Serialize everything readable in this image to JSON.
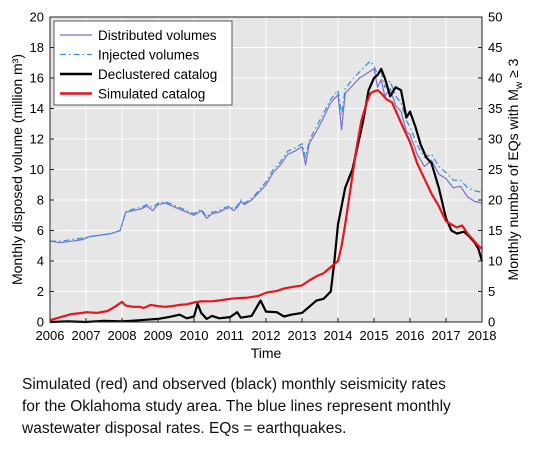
{
  "chart_data": {
    "type": "line",
    "xlabel": "Time",
    "ylabel_left": "Monthly disposed volume (million m³)",
    "ylabel_right": "Monthly number of EQs with Mw ≥ 3",
    "xlim": [
      2006,
      2018
    ],
    "ylim_left": [
      0,
      20
    ],
    "ylim_right": [
      0,
      50
    ],
    "x_ticks": [
      2006,
      2007,
      2008,
      2009,
      2010,
      2011,
      2012,
      2013,
      2014,
      2015,
      2016,
      2017,
      2018
    ],
    "y_left_ticks": [
      0,
      2,
      4,
      6,
      8,
      10,
      12,
      14,
      16,
      18,
      20
    ],
    "y_right_ticks": [
      0,
      5,
      10,
      15,
      20,
      25,
      30,
      35,
      40,
      45,
      50
    ],
    "grid": true,
    "legend_position": "top-left",
    "series": [
      {
        "name": "Distributed volumes",
        "axis": "left",
        "color": "#7b6fc9",
        "style": "solid",
        "points": [
          [
            2006.0,
            5.3
          ],
          [
            2006.3,
            5.2
          ],
          [
            2006.6,
            5.3
          ],
          [
            2006.9,
            5.4
          ],
          [
            2007.1,
            5.6
          ],
          [
            2007.4,
            5.7
          ],
          [
            2007.7,
            5.8
          ],
          [
            2007.95,
            6.0
          ],
          [
            2008.1,
            7.2
          ],
          [
            2008.3,
            7.3
          ],
          [
            2008.5,
            7.4
          ],
          [
            2008.7,
            7.6
          ],
          [
            2008.85,
            7.3
          ],
          [
            2009.0,
            7.7
          ],
          [
            2009.2,
            7.8
          ],
          [
            2009.4,
            7.6
          ],
          [
            2009.6,
            7.4
          ],
          [
            2009.8,
            7.2
          ],
          [
            2010.0,
            7.0
          ],
          [
            2010.2,
            7.3
          ],
          [
            2010.35,
            6.8
          ],
          [
            2010.5,
            7.1
          ],
          [
            2010.7,
            7.2
          ],
          [
            2010.85,
            7.4
          ],
          [
            2011.0,
            7.5
          ],
          [
            2011.1,
            7.3
          ],
          [
            2011.2,
            7.5
          ],
          [
            2011.3,
            7.9
          ],
          [
            2011.4,
            7.7
          ],
          [
            2011.6,
            8.0
          ],
          [
            2011.8,
            8.5
          ],
          [
            2012.0,
            9.0
          ],
          [
            2012.2,
            9.8
          ],
          [
            2012.4,
            10.3
          ],
          [
            2012.6,
            11.0
          ],
          [
            2012.8,
            11.2
          ],
          [
            2013.0,
            11.5
          ],
          [
            2013.1,
            10.3
          ],
          [
            2013.2,
            11.7
          ],
          [
            2013.4,
            12.5
          ],
          [
            2013.6,
            13.4
          ],
          [
            2013.8,
            14.4
          ],
          [
            2014.0,
            14.9
          ],
          [
            2014.1,
            12.6
          ],
          [
            2014.2,
            15.0
          ],
          [
            2014.4,
            15.5
          ],
          [
            2014.6,
            16.0
          ],
          [
            2014.8,
            16.3
          ],
          [
            2015.0,
            16.6
          ],
          [
            2015.1,
            15.4
          ],
          [
            2015.2,
            15.9
          ],
          [
            2015.3,
            14.8
          ],
          [
            2015.45,
            15.3
          ],
          [
            2015.6,
            14.2
          ],
          [
            2015.75,
            13.8
          ],
          [
            2015.9,
            12.5
          ],
          [
            2016.0,
            12.3
          ],
          [
            2016.2,
            11.0
          ],
          [
            2016.4,
            10.2
          ],
          [
            2016.6,
            10.6
          ],
          [
            2016.8,
            9.7
          ],
          [
            2017.0,
            9.4
          ],
          [
            2017.2,
            8.8
          ],
          [
            2017.4,
            8.9
          ],
          [
            2017.6,
            8.2
          ],
          [
            2017.8,
            7.9
          ],
          [
            2018.0,
            7.8
          ]
        ]
      },
      {
        "name": "Injected volumes",
        "axis": "left",
        "color": "#2e8fd8",
        "style": "dashdot",
        "points": [
          [
            2006.0,
            5.3
          ],
          [
            2006.3,
            5.3
          ],
          [
            2006.6,
            5.4
          ],
          [
            2006.9,
            5.5
          ],
          [
            2007.1,
            5.6
          ],
          [
            2007.4,
            5.7
          ],
          [
            2007.7,
            5.8
          ],
          [
            2007.95,
            6.0
          ],
          [
            2008.1,
            7.2
          ],
          [
            2008.3,
            7.4
          ],
          [
            2008.5,
            7.5
          ],
          [
            2008.7,
            7.7
          ],
          [
            2008.85,
            7.5
          ],
          [
            2009.0,
            7.8
          ],
          [
            2009.2,
            7.9
          ],
          [
            2009.4,
            7.7
          ],
          [
            2009.6,
            7.5
          ],
          [
            2009.8,
            7.3
          ],
          [
            2010.0,
            7.1
          ],
          [
            2010.2,
            7.4
          ],
          [
            2010.35,
            6.9
          ],
          [
            2010.5,
            7.2
          ],
          [
            2010.7,
            7.3
          ],
          [
            2010.85,
            7.5
          ],
          [
            2011.0,
            7.6
          ],
          [
            2011.1,
            7.4
          ],
          [
            2011.2,
            7.6
          ],
          [
            2011.3,
            8.0
          ],
          [
            2011.4,
            7.8
          ],
          [
            2011.6,
            8.1
          ],
          [
            2011.8,
            8.6
          ],
          [
            2012.0,
            9.2
          ],
          [
            2012.2,
            10.0
          ],
          [
            2012.4,
            10.5
          ],
          [
            2012.6,
            11.2
          ],
          [
            2012.8,
            11.4
          ],
          [
            2013.0,
            11.7
          ],
          [
            2013.1,
            10.8
          ],
          [
            2013.2,
            11.9
          ],
          [
            2013.4,
            12.8
          ],
          [
            2013.6,
            13.7
          ],
          [
            2013.8,
            14.6
          ],
          [
            2014.0,
            15.2
          ],
          [
            2014.1,
            13.6
          ],
          [
            2014.2,
            15.3
          ],
          [
            2014.4,
            15.9
          ],
          [
            2014.6,
            16.4
          ],
          [
            2014.8,
            16.9
          ],
          [
            2014.9,
            17.1
          ],
          [
            2015.0,
            16.8
          ],
          [
            2015.1,
            16.2
          ],
          [
            2015.2,
            16.4
          ],
          [
            2015.3,
            15.4
          ],
          [
            2015.45,
            15.8
          ],
          [
            2015.6,
            14.8
          ],
          [
            2015.75,
            14.4
          ],
          [
            2015.9,
            13.2
          ],
          [
            2016.0,
            12.8
          ],
          [
            2016.2,
            11.6
          ],
          [
            2016.4,
            10.8
          ],
          [
            2016.6,
            11.0
          ],
          [
            2016.8,
            10.2
          ],
          [
            2017.0,
            9.8
          ],
          [
            2017.2,
            9.3
          ],
          [
            2017.4,
            9.3
          ],
          [
            2017.6,
            8.8
          ],
          [
            2017.8,
            8.6
          ],
          [
            2018.0,
            8.5
          ]
        ]
      },
      {
        "name": "Declustered catalog",
        "axis": "right",
        "color": "#000000",
        "style": "solid",
        "points": [
          [
            2006.0,
            0.0
          ],
          [
            2006.5,
            0.1
          ],
          [
            2007.0,
            0.0
          ],
          [
            2007.5,
            0.2
          ],
          [
            2008.0,
            0.1
          ],
          [
            2008.5,
            0.3
          ],
          [
            2009.0,
            0.5
          ],
          [
            2009.3,
            0.8
          ],
          [
            2009.6,
            1.2
          ],
          [
            2009.8,
            0.6
          ],
          [
            2010.0,
            0.9
          ],
          [
            2010.1,
            3.0
          ],
          [
            2010.2,
            1.5
          ],
          [
            2010.35,
            0.5
          ],
          [
            2010.5,
            1.0
          ],
          [
            2010.7,
            0.6
          ],
          [
            2011.0,
            0.8
          ],
          [
            2011.2,
            1.6
          ],
          [
            2011.3,
            0.7
          ],
          [
            2011.6,
            1.0
          ],
          [
            2011.85,
            3.5
          ],
          [
            2012.0,
            1.7
          ],
          [
            2012.3,
            1.6
          ],
          [
            2012.5,
            0.9
          ],
          [
            2012.7,
            1.2
          ],
          [
            2013.0,
            1.5
          ],
          [
            2013.2,
            2.5
          ],
          [
            2013.4,
            3.5
          ],
          [
            2013.6,
            3.8
          ],
          [
            2013.8,
            5.0
          ],
          [
            2013.9,
            10.0
          ],
          [
            2014.0,
            16.0
          ],
          [
            2014.2,
            22.0
          ],
          [
            2014.4,
            25.0
          ],
          [
            2014.55,
            29.0
          ],
          [
            2014.7,
            33.0
          ],
          [
            2014.85,
            38.0
          ],
          [
            2015.0,
            40.0
          ],
          [
            2015.1,
            40.5
          ],
          [
            2015.2,
            41.5
          ],
          [
            2015.3,
            40.0
          ],
          [
            2015.45,
            37.0
          ],
          [
            2015.6,
            38.5
          ],
          [
            2015.75,
            38.0
          ],
          [
            2015.9,
            33.5
          ],
          [
            2016.0,
            34.5
          ],
          [
            2016.15,
            32.0
          ],
          [
            2016.3,
            29.0
          ],
          [
            2016.45,
            27.0
          ],
          [
            2016.6,
            26.0
          ],
          [
            2016.8,
            22.0
          ],
          [
            2017.0,
            17.0
          ],
          [
            2017.15,
            15.0
          ],
          [
            2017.3,
            14.5
          ],
          [
            2017.5,
            14.8
          ],
          [
            2017.65,
            14.0
          ],
          [
            2017.8,
            13.0
          ],
          [
            2017.9,
            12.0
          ],
          [
            2018.0,
            10.0
          ]
        ]
      },
      {
        "name": "Simulated catalog",
        "axis": "right",
        "color": "#e8141c",
        "style": "solid",
        "points": [
          [
            2006.0,
            0.3
          ],
          [
            2006.3,
            0.8
          ],
          [
            2006.6,
            1.3
          ],
          [
            2006.9,
            1.5
          ],
          [
            2007.0,
            1.6
          ],
          [
            2007.3,
            1.5
          ],
          [
            2007.6,
            1.8
          ],
          [
            2007.8,
            2.5
          ],
          [
            2008.0,
            3.3
          ],
          [
            2008.1,
            2.7
          ],
          [
            2008.3,
            2.5
          ],
          [
            2008.5,
            2.5
          ],
          [
            2008.6,
            2.3
          ],
          [
            2008.8,
            2.8
          ],
          [
            2009.0,
            2.6
          ],
          [
            2009.2,
            2.5
          ],
          [
            2009.4,
            2.6
          ],
          [
            2009.6,
            2.8
          ],
          [
            2009.8,
            2.9
          ],
          [
            2010.0,
            3.2
          ],
          [
            2010.2,
            3.4
          ],
          [
            2010.5,
            3.4
          ],
          [
            2010.8,
            3.6
          ],
          [
            2011.0,
            3.8
          ],
          [
            2011.2,
            3.9
          ],
          [
            2011.5,
            4.0
          ],
          [
            2011.8,
            4.3
          ],
          [
            2012.0,
            4.8
          ],
          [
            2012.3,
            5.1
          ],
          [
            2012.5,
            5.5
          ],
          [
            2012.7,
            5.7
          ],
          [
            2013.0,
            6.0
          ],
          [
            2013.2,
            6.8
          ],
          [
            2013.4,
            7.5
          ],
          [
            2013.6,
            8.0
          ],
          [
            2013.8,
            9.0
          ],
          [
            2014.0,
            10.0
          ],
          [
            2014.1,
            12.5
          ],
          [
            2014.2,
            16.0
          ],
          [
            2014.35,
            22.0
          ],
          [
            2014.5,
            28.0
          ],
          [
            2014.65,
            33.0
          ],
          [
            2014.8,
            36.0
          ],
          [
            2014.9,
            37.5
          ],
          [
            2015.0,
            37.8
          ],
          [
            2015.1,
            38.0
          ],
          [
            2015.2,
            37.5
          ],
          [
            2015.35,
            36.5
          ],
          [
            2015.5,
            36.0
          ],
          [
            2015.65,
            34.0
          ],
          [
            2015.8,
            32.0
          ],
          [
            2016.0,
            29.5
          ],
          [
            2016.2,
            26.0
          ],
          [
            2016.4,
            23.5
          ],
          [
            2016.6,
            21.0
          ],
          [
            2016.8,
            19.0
          ],
          [
            2017.0,
            16.5
          ],
          [
            2017.15,
            16.0
          ],
          [
            2017.3,
            15.5
          ],
          [
            2017.45,
            15.8
          ],
          [
            2017.6,
            14.5
          ],
          [
            2017.75,
            13.5
          ],
          [
            2017.9,
            12.5
          ],
          [
            2018.0,
            12.0
          ]
        ]
      }
    ]
  },
  "caption": {
    "line1": "Simulated (red) and observed (black) monthly seismicity rates",
    "line2": "for the Oklahoma study area. The blue lines represent monthly",
    "line3": "wastewater disposal rates. EQs = earthquakes."
  }
}
